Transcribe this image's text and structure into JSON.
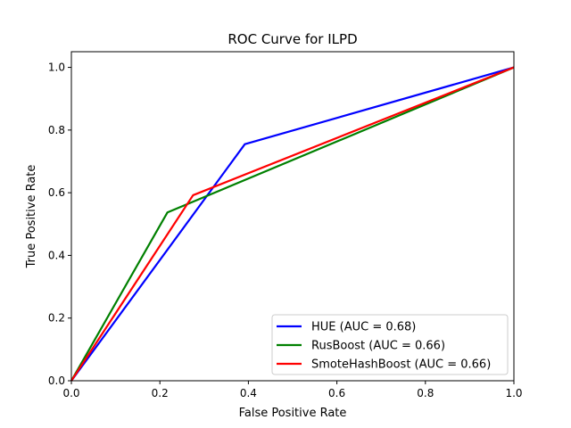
{
  "chart_data": {
    "type": "line",
    "title": "ROC Curve for ILPD",
    "xlabel": "False Positive Rate",
    "ylabel": "True Positive Rate",
    "xlim": [
      0,
      1
    ],
    "ylim": [
      0,
      1.05
    ],
    "xticks": [
      0.0,
      0.2,
      0.4,
      0.6,
      0.8,
      1.0
    ],
    "yticks": [
      0.0,
      0.2,
      0.4,
      0.6,
      0.8,
      1.0
    ],
    "tick_labels_x": [
      "0.0",
      "0.2",
      "0.4",
      "0.6",
      "0.8",
      "1.0"
    ],
    "tick_labels_y": [
      "0.0",
      "0.2",
      "0.4",
      "0.6",
      "0.8",
      "1.0"
    ],
    "grid": false,
    "legend_position": "lower-right",
    "series": [
      {
        "name": "HUE (AUC = 0.68)",
        "color": "#0000ff",
        "x": [
          0.0,
          0.392,
          1.0
        ],
        "y": [
          0.0,
          0.755,
          1.0
        ]
      },
      {
        "name": "RusBoost (AUC = 0.66)",
        "color": "#008000",
        "x": [
          0.0,
          0.217,
          1.0
        ],
        "y": [
          0.0,
          0.537,
          1.0
        ]
      },
      {
        "name": "SmoteHashBoost (AUC = 0.66)",
        "color": "#ff0000",
        "x": [
          0.0,
          0.275,
          1.0
        ],
        "y": [
          0.0,
          0.592,
          1.0
        ]
      }
    ]
  }
}
